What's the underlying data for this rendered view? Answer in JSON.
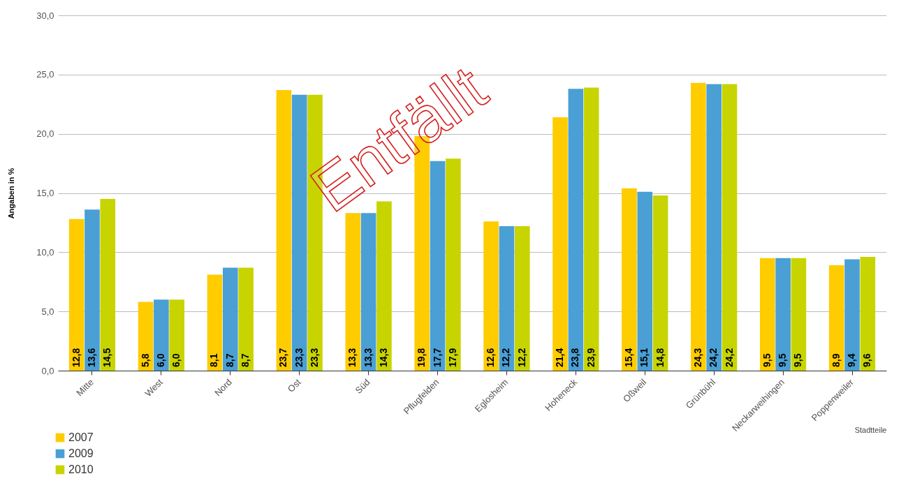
{
  "chart_data": {
    "type": "bar",
    "ylabel": "Angaben in %",
    "xlabel": "Stadtteile",
    "categories": [
      "Mitte",
      "West",
      "Nord",
      "Ost",
      "Süd",
      "Pflugfelden",
      "Eglosheim",
      "Hoheneck",
      "Oßweil",
      "Grünbühl",
      "Neckarweihingen",
      "Poppenweiler"
    ],
    "series": [
      {
        "name": "2007",
        "color": "#ffcc00",
        "values": [
          12.8,
          5.8,
          8.1,
          23.7,
          13.3,
          19.8,
          12.6,
          21.4,
          15.4,
          24.3,
          9.5,
          8.9
        ],
        "value_labels": [
          "12,8",
          "5,8",
          "8,1",
          "23,7",
          "13,3",
          "19,8",
          "12,6",
          "21,4",
          "15,4",
          "24,3",
          "9,5",
          "8,9"
        ]
      },
      {
        "name": "2009",
        "color": "#4a9fd5",
        "values": [
          13.6,
          6.0,
          8.7,
          23.3,
          13.3,
          17.7,
          12.2,
          23.8,
          15.1,
          24.2,
          9.5,
          9.4
        ],
        "value_labels": [
          "13,6",
          "6,0",
          "8,7",
          "23,3",
          "13,3",
          "17,7",
          "12,2",
          "23,8",
          "15,1",
          "24,2",
          "9,5",
          "9,4"
        ]
      },
      {
        "name": "2010",
        "color": "#c8d400",
        "values": [
          14.5,
          6.0,
          8.7,
          23.3,
          14.3,
          17.9,
          12.2,
          23.9,
          14.8,
          24.2,
          9.5,
          9.6
        ],
        "value_labels": [
          "14,5",
          "6,0",
          "8,7",
          "23,3",
          "14,3",
          "17,9",
          "12,2",
          "23,9",
          "14,8",
          "24,2",
          "9,5",
          "9,6"
        ]
      }
    ],
    "ylim": [
      0,
      30
    ],
    "yticks": [
      {
        "value": 0,
        "label": "0,0"
      },
      {
        "value": 5,
        "label": "5,0"
      },
      {
        "value": 10,
        "label": "10,0"
      },
      {
        "value": 15,
        "label": "15,0"
      },
      {
        "value": 20,
        "label": "20,0"
      },
      {
        "value": 25,
        "label": "25,0"
      },
      {
        "value": 30,
        "label": "30,0"
      }
    ],
    "grid": "y",
    "legend": "bottom left",
    "annotations": [
      "Entfällt"
    ]
  }
}
